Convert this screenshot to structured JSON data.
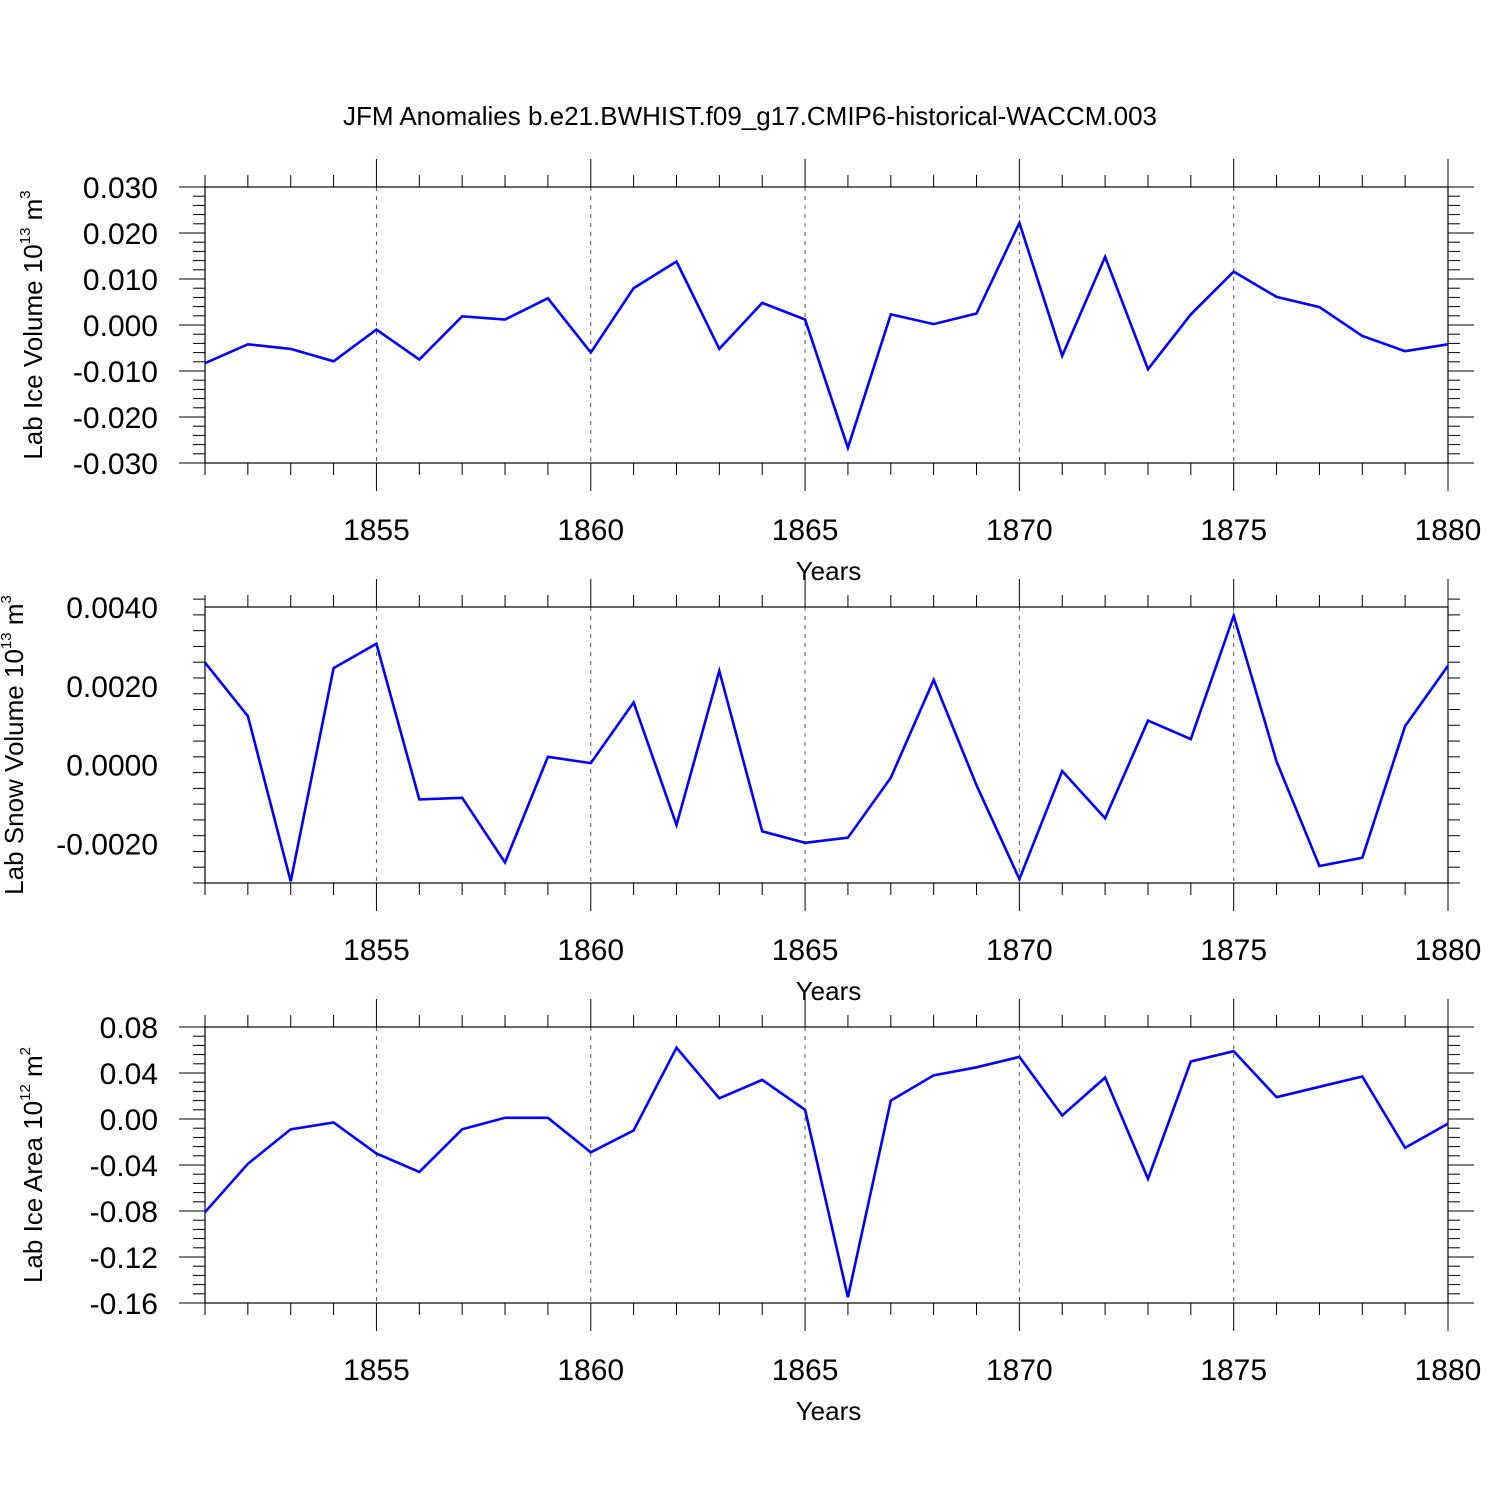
{
  "title": "JFM Anomalies b.e21.BWHIST.f09_g17.CMIP6-historical-WACCM.003",
  "line_color": "#0000ff",
  "chart_data": [
    {
      "type": "line",
      "title": "",
      "xlabel": "Years",
      "ylabel": {
        "main": "Lab Ice Volume 10",
        "exp": "13",
        "unit": " m",
        "unit_exp": "3"
      },
      "xlim": [
        1851,
        1880
      ],
      "ylim": [
        -0.03,
        0.03
      ],
      "xticks": [
        1855,
        1860,
        1865,
        1870,
        1875,
        1880
      ],
      "yticks": [
        -0.03,
        -0.02,
        -0.01,
        0.0,
        0.01,
        0.02,
        0.03
      ],
      "ytick_labels": [
        "-0.030",
        "-0.020",
        "-0.010",
        "0.000",
        "0.010",
        "0.020",
        "0.030"
      ],
      "grid": "vertical dashed at major x ticks",
      "x": [
        1851,
        1852,
        1853,
        1854,
        1855,
        1856,
        1857,
        1858,
        1859,
        1860,
        1861,
        1862,
        1863,
        1864,
        1865,
        1866,
        1867,
        1868,
        1869,
        1870,
        1871,
        1872,
        1873,
        1874,
        1875,
        1876,
        1877,
        1878,
        1879,
        1880
      ],
      "series": [
        {
          "values": [
            -0.0083,
            -0.0042,
            -0.0052,
            -0.0079,
            -0.001,
            -0.0075,
            0.0019,
            0.0012,
            0.0058,
            -0.006,
            0.008,
            0.0138,
            -0.0052,
            0.0048,
            0.0012,
            -0.0267,
            0.0023,
            0.0002,
            0.0025,
            0.0222,
            -0.0067,
            0.0148,
            -0.0096,
            0.0023,
            0.0116,
            0.0061,
            0.0039,
            -0.0024,
            -0.0057,
            -0.0042
          ]
        }
      ]
    },
    {
      "type": "line",
      "title": "",
      "xlabel": "Years",
      "ylabel": {
        "main": "Lab Snow Volume 10",
        "exp": "13",
        "unit": " m",
        "unit_exp": "3"
      },
      "xlim": [
        1851,
        1880
      ],
      "ylim": [
        -0.003,
        0.004
      ],
      "xticks": [
        1855,
        1860,
        1865,
        1870,
        1875,
        1880
      ],
      "yticks": [
        -0.002,
        0.0,
        0.002,
        0.004
      ],
      "ytick_labels": [
        "-0.0020",
        "0.0000",
        "0.0020",
        "0.0040"
      ],
      "grid": "vertical dashed at major x ticks",
      "x": [
        1851,
        1852,
        1853,
        1854,
        1855,
        1856,
        1857,
        1858,
        1859,
        1860,
        1861,
        1862,
        1863,
        1864,
        1865,
        1866,
        1867,
        1868,
        1869,
        1870,
        1871,
        1872,
        1873,
        1874,
        1875,
        1876,
        1877,
        1878,
        1879,
        1880
      ],
      "series": [
        {
          "values": [
            0.00259,
            0.00123,
            -0.00296,
            0.00245,
            0.00307,
            -0.00088,
            -0.00084,
            -0.00248,
            0.0002,
            4e-05,
            0.00158,
            -0.00153,
            0.00238,
            -0.00169,
            -0.00198,
            -0.00185,
            -0.00033,
            0.00215,
            -0.00052,
            -0.0029,
            -0.00016,
            -0.00136,
            0.00112,
            0.00065,
            0.00378,
            8e-05,
            -0.00257,
            -0.00236,
            0.00098,
            0.00251
          ]
        }
      ]
    },
    {
      "type": "line",
      "title": "",
      "xlabel": "Years",
      "ylabel": {
        "main": "Lab Ice Area 10",
        "exp": "12",
        "unit": " m",
        "unit_exp": "2"
      },
      "xlim": [
        1851,
        1880
      ],
      "ylim": [
        -0.16,
        0.08
      ],
      "xticks": [
        1855,
        1860,
        1865,
        1870,
        1875,
        1880
      ],
      "yticks": [
        -0.16,
        -0.12,
        -0.08,
        -0.04,
        0.0,
        0.04,
        0.08
      ],
      "ytick_labels": [
        "-0.16",
        "-0.12",
        "-0.08",
        "-0.04",
        "0.00",
        "0.04",
        "0.08"
      ],
      "grid": "vertical dashed at major x ticks",
      "x": [
        1851,
        1852,
        1853,
        1854,
        1855,
        1856,
        1857,
        1858,
        1859,
        1860,
        1861,
        1862,
        1863,
        1864,
        1865,
        1866,
        1867,
        1868,
        1869,
        1870,
        1871,
        1872,
        1873,
        1874,
        1875,
        1876,
        1877,
        1878,
        1879,
        1880
      ],
      "series": [
        {
          "values": [
            -0.081,
            -0.039,
            -0.009,
            -0.003,
            -0.03,
            -0.046,
            -0.009,
            0.001,
            0.001,
            -0.029,
            -0.01,
            0.062,
            0.018,
            0.034,
            0.008,
            -0.155,
            0.016,
            0.038,
            0.045,
            0.054,
            0.003,
            0.036,
            -0.052,
            0.05,
            0.059,
            0.019,
            0.028,
            0.037,
            -0.025,
            -0.004
          ]
        }
      ]
    }
  ]
}
